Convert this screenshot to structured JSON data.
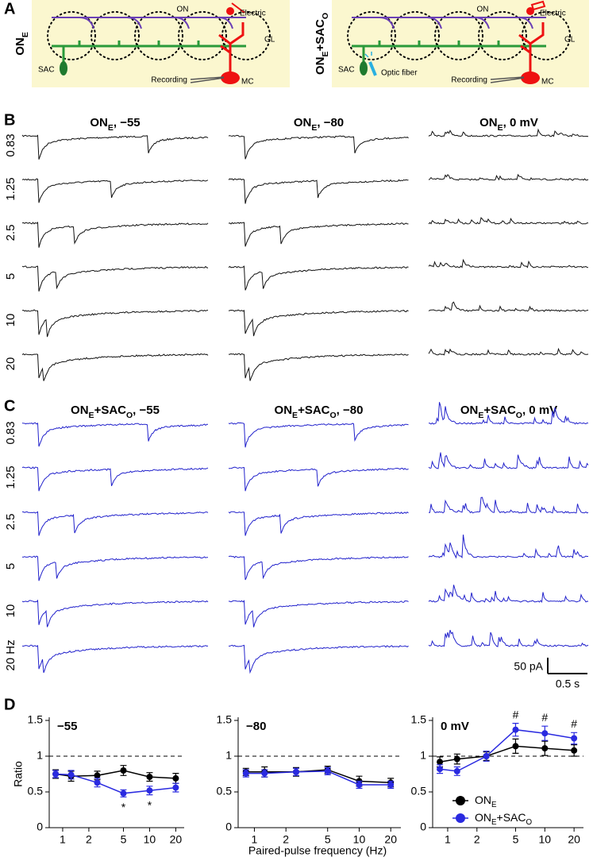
{
  "panel_labels": [
    "A",
    "B",
    "C",
    "D"
  ],
  "panel_a": [
    {
      "label": [
        "ON",
        "E"
      ],
      "texts": {
        "on": "ON",
        "electric": "Electric",
        "gl": "GL",
        "sac": "SAC",
        "recording": "Recording",
        "mc": "MC"
      }
    },
    {
      "label": [
        "ON",
        "E",
        "+SAC",
        "O"
      ],
      "texts": {
        "on": "ON",
        "electric": "Electric",
        "gl": "GL",
        "sac": "SAC",
        "recording": "Recording",
        "mc": "MC",
        "fiber": "Optic fiber"
      }
    }
  ],
  "panel_b": {
    "titles": [
      [
        "ON",
        "E",
        ", −55"
      ],
      [
        "ON",
        "E",
        ", −80"
      ],
      [
        "ON",
        "E",
        ", 0 mV"
      ]
    ],
    "rows": [
      0.83,
      1.25,
      2.5,
      5,
      10,
      20
    ]
  },
  "panel_c": {
    "titles": [
      [
        "ON",
        "E",
        "+SAC",
        "O",
        ", −55"
      ],
      [
        "ON",
        "E",
        "+SAC",
        "O",
        ", −80"
      ],
      [
        "ON",
        "E",
        "+SAC",
        "O",
        ", 0 mV"
      ]
    ],
    "rows": [
      0.83,
      1.25,
      2.5,
      5,
      10,
      {
        "value": 20,
        "label": "20 Hz"
      }
    ]
  },
  "scale_bar": {
    "amplitude": "50 pA",
    "time": "0.5 s"
  },
  "panel_d_xlabel": "Paired-pulse frequency (Hz)",
  "chart_data": [
    {
      "type": "line",
      "title": "−55",
      "ylabel": "Ratio",
      "log_x": true,
      "refline": 1,
      "x": [
        0.83,
        1.25,
        2.5,
        5,
        10,
        20
      ],
      "xlim": [
        0.7,
        25
      ],
      "xticks": [
        1,
        2,
        5,
        10,
        20
      ],
      "ylim": [
        0,
        1.5
      ],
      "yticks": [
        0,
        0.5,
        1,
        1.5
      ],
      "series": [
        {
          "color": "#000000",
          "values": [
            0.75,
            0.72,
            0.73,
            0.8,
            0.71,
            0.69
          ],
          "errors": [
            0.06,
            0.07,
            0.06,
            0.07,
            0.06,
            0.07
          ]
        },
        {
          "color": "#2a2ae0",
          "values": [
            0.75,
            0.74,
            0.63,
            0.48,
            0.52,
            0.56
          ],
          "errors": [
            0.05,
            0.06,
            0.06,
            0.05,
            0.06,
            0.06
          ]
        }
      ],
      "annotations": [
        {
          "x": 5,
          "series": 1,
          "text": "*"
        },
        {
          "x": 10,
          "series": 1,
          "text": "*"
        }
      ]
    },
    {
      "type": "line",
      "title": "−80",
      "log_x": true,
      "refline": 1,
      "x": [
        0.83,
        1.25,
        2.5,
        5,
        10,
        20
      ],
      "xlim": [
        0.7,
        25
      ],
      "xticks": [
        1,
        2,
        5,
        10,
        20
      ],
      "ylim": [
        0,
        1.5
      ],
      "yticks": [
        0,
        0.5,
        1,
        1.5
      ],
      "series": [
        {
          "color": "#000000",
          "values": [
            0.78,
            0.78,
            0.78,
            0.81,
            0.65,
            0.63
          ],
          "errors": [
            0.05,
            0.07,
            0.06,
            0.05,
            0.07,
            0.06
          ]
        },
        {
          "color": "#2a2ae0",
          "values": [
            0.76,
            0.76,
            0.78,
            0.79,
            0.6,
            0.6
          ],
          "errors": [
            0.05,
            0.05,
            0.05,
            0.05,
            0.05,
            0.05
          ]
        }
      ]
    },
    {
      "type": "line",
      "title": "0 mV",
      "log_x": true,
      "refline": 1,
      "legend": "lower right",
      "x": [
        0.83,
        1.25,
        2.5,
        5,
        10,
        20
      ],
      "xlim": [
        0.7,
        25
      ],
      "xticks": [
        1,
        2,
        5,
        10,
        20
      ],
      "ylim": [
        0,
        1.5
      ],
      "yticks": [
        0,
        0.5,
        1,
        1.5
      ],
      "series": [
        {
          "name": [
            "ON",
            "E"
          ],
          "color": "#000000",
          "values": [
            0.92,
            0.96,
            1.0,
            1.14,
            1.11,
            1.08
          ],
          "errors": [
            0.07,
            0.07,
            0.06,
            0.1,
            0.1,
            0.08
          ]
        },
        {
          "name": [
            "ON",
            "E",
            "+SAC",
            "O"
          ],
          "color": "#2a2ae0",
          "values": [
            0.82,
            0.79,
            1.0,
            1.37,
            1.32,
            1.25
          ],
          "errors": [
            0.06,
            0.06,
            0.07,
            0.09,
            0.1,
            0.08
          ]
        }
      ],
      "annotations": [
        {
          "x": 5,
          "series": 1,
          "text": "#"
        },
        {
          "x": 10,
          "series": 1,
          "text": "#"
        },
        {
          "x": 20,
          "series": 1,
          "text": "#"
        }
      ]
    }
  ]
}
